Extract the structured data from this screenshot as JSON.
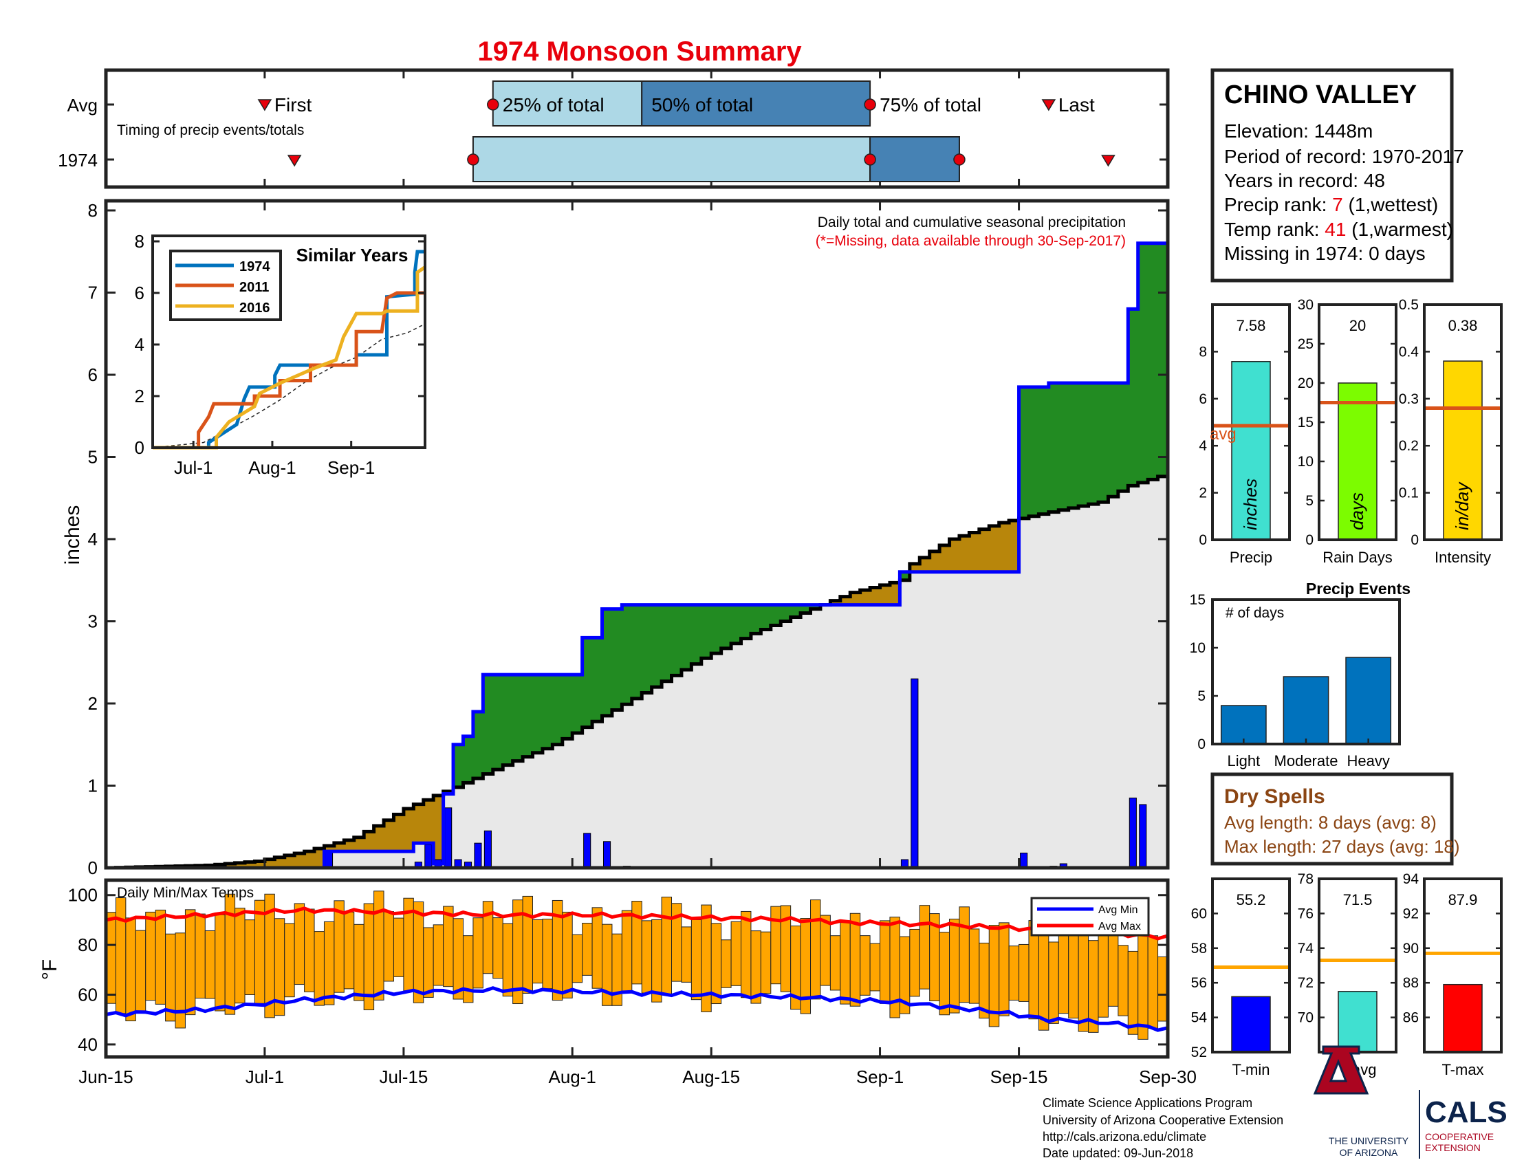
{
  "title": "1974 Monsoon Summary",
  "colors": {
    "title": "#e8000b",
    "missing_note": "#e8000b",
    "box_light": "#add8e6",
    "box_dark": "#4682b4",
    "wet_fill": "#228b22",
    "dry_fill": "#b8860b",
    "avg_fill": "#e8e8e8",
    "cumulative_line": "#0000ff",
    "avg_line": "#000000",
    "daily_bar": "#0000ff",
    "temp_bar": "#ffa500",
    "avg_max_line": "#ff0000",
    "avg_min_line": "#0000ff",
    "precip_bar": "#40e0d0",
    "raindays_bar": "#7cfc00",
    "intensity_bar": "#ffd700",
    "avg_marker_line": "#d95319",
    "event_bar": "#0072bd",
    "tmin_bar": "#0000ff",
    "tavg_bar": "#40e0d0",
    "tmax_bar": "#ff0000",
    "temp_avg_line": "#ffa500",
    "dry_spells_text": "#8b4513",
    "rank_value": "#e8000b",
    "legend_1974": "#0072bd",
    "legend_2011": "#d95319",
    "legend_2016": "#edb120",
    "ua_red": "#ab0520",
    "ua_blue": "#0c234b"
  },
  "station": {
    "name": "CHINO VALLEY",
    "elevation": "Elevation: 1448m",
    "period": "Period of record: 1970-2017",
    "years": "Years in record: 48",
    "precip_rank_prefix": "Precip rank: ",
    "precip_rank_value": "7",
    "precip_rank_suffix": " (1,wettest)",
    "temp_rank_prefix": "Temp rank: ",
    "temp_rank_value": "41",
    "temp_rank_suffix": " (1,warmest)",
    "missing": "Missing in 1974: 0 days"
  },
  "dry_spells": {
    "title": "Dry Spells",
    "avg_length": "Avg length: 8 days (avg: 8)",
    "max_length": "Max length: 27 days (avg: 18)"
  },
  "footer": {
    "line1": "Climate Science Applications Program",
    "line2": "University of Arizona Cooperative Extension",
    "line3": "http://cals.arizona.edu/climate",
    "line4": " Date updated: 09-Jun-2018"
  },
  "logos": {
    "ua_line1": "THE UNIVERSITY",
    "ua_line2": "OF ARIZONA",
    "cals": "CALS",
    "coop1": "COOPERATIVE",
    "coop2": "EXTENSION"
  },
  "chart_data": [
    {
      "id": "timing",
      "type": "box",
      "annotation": "Timing of precip events/totals",
      "rows": [
        "Avg",
        "1974"
      ],
      "avg": {
        "first": "Jul-1",
        "p25": "Jul-24",
        "p50": "Aug-8",
        "p75": "Aug-31",
        "last": "Sep-18"
      },
      "y1974": {
        "first": "Jul-4",
        "p25": "Jul-22",
        "p50": "Aug-31",
        "p75": "Sep-9",
        "last": "Sep-24"
      },
      "labels": {
        "first": "First",
        "p25": "25% of total",
        "p50": "50% of total",
        "p75": "75% of total",
        "last": "Last"
      }
    },
    {
      "id": "cumulative",
      "type": "area",
      "title": "Daily total and cumulative seasonal precipitation",
      "note": "(*=Missing, data available through 30-Sep-2017)",
      "ylabel": "inches",
      "ylim": [
        0,
        8
      ],
      "yticks": [
        0,
        1,
        2,
        3,
        4,
        5,
        6,
        7,
        8
      ],
      "x_ticks": [
        "Jun-15",
        "Jul-1",
        "Jul-15",
        "Aug-1",
        "Aug-15",
        "Sep-1",
        "Sep-15",
        "Sep-30"
      ],
      "x_tick_days": [
        0,
        16,
        30,
        47,
        61,
        78,
        92,
        107
      ],
      "avg_cumulative": [
        [
          0,
          0
        ],
        [
          10,
          0.03
        ],
        [
          15,
          0.08
        ],
        [
          20,
          0.2
        ],
        [
          25,
          0.37
        ],
        [
          30,
          0.72
        ],
        [
          33,
          0.88
        ],
        [
          35,
          0.98
        ],
        [
          40,
          1.25
        ],
        [
          45,
          1.5
        ],
        [
          50,
          1.85
        ],
        [
          55,
          2.2
        ],
        [
          60,
          2.55
        ],
        [
          65,
          2.85
        ],
        [
          70,
          3.1
        ],
        [
          75,
          3.35
        ],
        [
          80,
          3.5
        ],
        [
          81,
          3.7
        ],
        [
          85,
          4.0
        ],
        [
          90,
          4.2
        ],
        [
          95,
          4.33
        ],
        [
          100,
          4.45
        ],
        [
          103,
          4.65
        ],
        [
          107,
          4.8
        ]
      ],
      "cumulative_1974": [
        [
          0,
          0
        ],
        [
          22,
          0
        ],
        [
          22,
          0.2
        ],
        [
          31,
          0.2
        ],
        [
          31,
          0.3
        ],
        [
          32,
          0.3
        ],
        [
          33,
          0.5
        ],
        [
          34,
          0.73
        ],
        [
          35,
          0.73
        ],
        [
          35,
          0.05
        ],
        [
          33,
          0.05
        ],
        [
          34,
          0.9
        ],
        [
          35,
          0.9
        ],
        [
          35,
          1.5
        ],
        [
          36,
          1.6
        ],
        [
          37,
          1.9
        ],
        [
          38,
          2.35
        ],
        [
          48,
          2.35
        ],
        [
          48,
          2.8
        ],
        [
          50,
          2.8
        ],
        [
          50,
          3.15
        ],
        [
          52,
          3.2
        ],
        [
          80,
          3.2
        ],
        [
          80,
          3.6
        ],
        [
          92,
          3.6
        ],
        [
          92,
          5.85
        ],
        [
          94,
          5.85
        ],
        [
          95,
          5.9
        ],
        [
          103,
          5.95
        ],
        [
          103,
          6.8
        ],
        [
          104,
          6.8
        ],
        [
          104,
          7.6
        ],
        [
          107,
          7.6
        ]
      ],
      "daily_bars": [
        [
          22,
          0.2
        ],
        [
          31,
          0.07
        ],
        [
          32,
          0.28
        ],
        [
          33,
          0.1
        ],
        [
          34,
          0.73
        ],
        [
          35,
          0.1
        ],
        [
          36,
          0.07
        ],
        [
          37,
          0.3
        ],
        [
          38,
          0.45
        ],
        [
          48,
          0.42
        ],
        [
          50,
          0.32
        ],
        [
          52,
          0.02
        ],
        [
          80,
          0.1
        ],
        [
          81,
          2.3
        ],
        [
          92,
          0.18
        ],
        [
          95,
          0.02
        ],
        [
          96,
          0.05
        ],
        [
          103,
          0.85
        ],
        [
          104,
          0.77
        ]
      ]
    },
    {
      "id": "similar_years",
      "type": "line",
      "title": "Similar Years",
      "ylim": [
        0,
        8
      ],
      "yticks": [
        0,
        2,
        4,
        6,
        8
      ],
      "x_ticks": [
        "Jul-1",
        "Aug-1",
        "Sep-1"
      ],
      "x_tick_days": [
        16,
        47,
        78
      ],
      "series": [
        {
          "name": "1974",
          "color": "#0072bd",
          "points": [
            [
              0,
              0
            ],
            [
              22,
              0
            ],
            [
              22,
              0.2
            ],
            [
              33,
              0.9
            ],
            [
              36,
              1.9
            ],
            [
              38,
              2.35
            ],
            [
              48,
              2.35
            ],
            [
              48,
              2.8
            ],
            [
              50,
              3.2
            ],
            [
              80,
              3.2
            ],
            [
              80,
              3.6
            ],
            [
              92,
              3.6
            ],
            [
              92,
              5.85
            ],
            [
              103,
              5.95
            ],
            [
              103,
              6.8
            ],
            [
              104,
              7.6
            ],
            [
              107,
              7.6
            ]
          ]
        },
        {
          "name": "2011",
          "color": "#d95319",
          "points": [
            [
              0,
              0
            ],
            [
              18,
              0
            ],
            [
              18,
              0.6
            ],
            [
              22,
              1.2
            ],
            [
              24,
              1.7
            ],
            [
              40,
              1.7
            ],
            [
              40,
              2.0
            ],
            [
              50,
              2.0
            ],
            [
              50,
              2.6
            ],
            [
              62,
              2.6
            ],
            [
              62,
              3.2
            ],
            [
              80,
              3.2
            ],
            [
              80,
              4.5
            ],
            [
              90,
              4.5
            ],
            [
              92,
              5.8
            ],
            [
              96,
              6.0
            ],
            [
              107,
              6.0
            ]
          ]
        },
        {
          "name": "2016",
          "color": "#edb120",
          "points": [
            [
              0,
              0
            ],
            [
              25,
              0
            ],
            [
              25,
              0.4
            ],
            [
              30,
              1.0
            ],
            [
              40,
              1.6
            ],
            [
              42,
              2.1
            ],
            [
              50,
              2.5
            ],
            [
              64,
              3.1
            ],
            [
              72,
              3.4
            ],
            [
              75,
              4.3
            ],
            [
              80,
              5.2
            ],
            [
              85,
              5.2
            ],
            [
              90,
              5.2
            ],
            [
              92,
              5.3
            ],
            [
              104,
              5.3
            ],
            [
              104,
              6.8
            ],
            [
              107,
              7.0
            ]
          ]
        }
      ],
      "average": [
        [
          0,
          0
        ],
        [
          20,
          0.2
        ],
        [
          30,
          0.72
        ],
        [
          40,
          1.25
        ],
        [
          50,
          1.85
        ],
        [
          60,
          2.55
        ],
        [
          70,
          3.1
        ],
        [
          80,
          3.5
        ],
        [
          90,
          4.2
        ],
        [
          100,
          4.45
        ],
        [
          107,
          4.8
        ]
      ]
    },
    {
      "id": "temps",
      "type": "bar",
      "title": "Daily Min/Max Temps",
      "ylabel": "°F",
      "ylim": [
        35,
        106
      ],
      "yticks": [
        40,
        60,
        80,
        100
      ],
      "legend": [
        "Avg Min",
        "Avg Max"
      ],
      "avg_max": [
        [
          0,
          90
        ],
        [
          10,
          92
        ],
        [
          20,
          94
        ],
        [
          30,
          93
        ],
        [
          40,
          92
        ],
        [
          50,
          92
        ],
        [
          60,
          91
        ],
        [
          70,
          90
        ],
        [
          75,
          89
        ],
        [
          85,
          88
        ],
        [
          90,
          87
        ],
        [
          95,
          86
        ],
        [
          100,
          85
        ],
        [
          107,
          83
        ]
      ],
      "avg_min": [
        [
          0,
          52
        ],
        [
          10,
          54
        ],
        [
          20,
          58
        ],
        [
          30,
          61
        ],
        [
          40,
          62
        ],
        [
          50,
          61
        ],
        [
          60,
          60
        ],
        [
          70,
          59
        ],
        [
          80,
          57
        ],
        [
          90,
          53
        ],
        [
          95,
          50
        ],
        [
          100,
          49
        ],
        [
          105,
          47
        ],
        [
          107,
          46
        ]
      ]
    },
    {
      "id": "precip_total",
      "type": "bar",
      "xlabel": "Precip",
      "value": 7.58,
      "value_label": "7.58",
      "avg": 4.85,
      "avg_label": "avg",
      "unit_label": "inches",
      "ylim": [
        0,
        10
      ],
      "yticks": [
        0,
        2,
        4,
        6,
        8
      ]
    },
    {
      "id": "rain_days",
      "type": "bar",
      "xlabel": "Rain Days",
      "value": 20,
      "value_label": "20",
      "avg": 17.5,
      "unit_label": "days",
      "ylim": [
        0,
        30
      ],
      "yticks": [
        0,
        5,
        10,
        15,
        20,
        25,
        30
      ]
    },
    {
      "id": "intensity",
      "type": "bar",
      "xlabel": "Intensity",
      "value": 0.38,
      "value_label": "0.38",
      "avg": 0.28,
      "unit_label": "in/day",
      "ylim": [
        0,
        0.5
      ],
      "yticks": [
        0,
        0.1,
        0.2,
        0.3,
        0.4,
        0.5
      ],
      "ytick_labels": [
        "0",
        "0.1",
        "0.2",
        "0.3",
        "0.4",
        "0.5"
      ]
    },
    {
      "id": "precip_events",
      "type": "bar",
      "title": "Precip Events",
      "annotation": "# of days",
      "categories": [
        "Light",
        "Moderate",
        "Heavy"
      ],
      "values": [
        4,
        7,
        9
      ],
      "ylim": [
        0,
        15
      ],
      "yticks": [
        0,
        5,
        10,
        15
      ]
    },
    {
      "id": "tmin",
      "type": "bar",
      "xlabel": "T-min",
      "value": 55.2,
      "value_label": "55.2",
      "avg": 56.9,
      "ylim": [
        52,
        62
      ],
      "yticks": [
        52,
        54,
        56,
        58,
        60
      ]
    },
    {
      "id": "tavg",
      "type": "bar",
      "xlabel": "T-avg",
      "value": 71.5,
      "value_label": "71.5",
      "avg": 73.3,
      "ylim": [
        68,
        78
      ],
      "yticks": [
        70,
        72,
        74,
        76,
        78
      ]
    },
    {
      "id": "tmax",
      "type": "bar",
      "xlabel": "T-max",
      "value": 87.9,
      "value_label": "87.9",
      "avg": 89.7,
      "ylim": [
        84,
        94
      ],
      "yticks": [
        86,
        88,
        90,
        92,
        94
      ]
    }
  ]
}
